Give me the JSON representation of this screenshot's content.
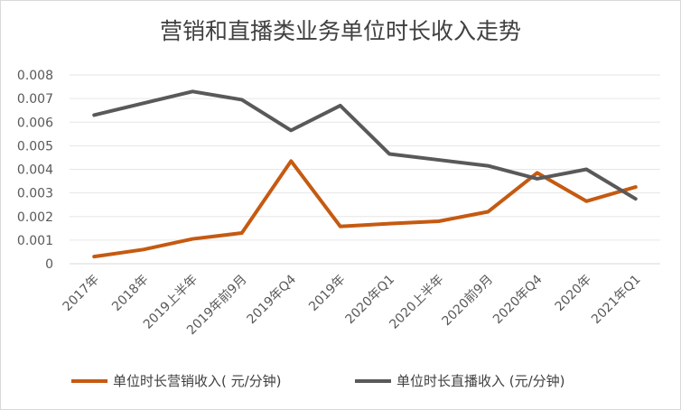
{
  "chart_data": {
    "type": "line",
    "title": "营销和直播类业务单位时长收入走势",
    "xlabel": "",
    "ylabel": "",
    "categories": [
      "2017年",
      "2018年",
      "2019上半年",
      "2019年前9月",
      "2019年Q4",
      "2019年",
      "2020年Q1",
      "2020上半年",
      "2020前9月",
      "2020年Q4",
      "2020年",
      "2021年Q1"
    ],
    "ylim": [
      0,
      0.008
    ],
    "yticks": [
      "0",
      "0.001",
      "0.002",
      "0.003",
      "0.004",
      "0.005",
      "0.006",
      "0.007",
      "0.008"
    ],
    "grid": true,
    "legend_position": "bottom",
    "series": [
      {
        "name": "单位时长营销收入( 元/分钟)",
        "color": "#C55A11",
        "values": [
          0.0003,
          0.0006,
          0.00105,
          0.0013,
          0.00435,
          0.00158,
          0.0017,
          0.0018,
          0.0022,
          0.00385,
          0.00265,
          0.00325
        ]
      },
      {
        "name": "单位时长直播收入 (元/分钟)",
        "color": "#595959",
        "values": [
          0.0063,
          0.0068,
          0.0073,
          0.00695,
          0.00565,
          0.0067,
          0.00465,
          0.0044,
          0.00415,
          0.0036,
          0.004,
          0.00275
        ]
      }
    ]
  }
}
